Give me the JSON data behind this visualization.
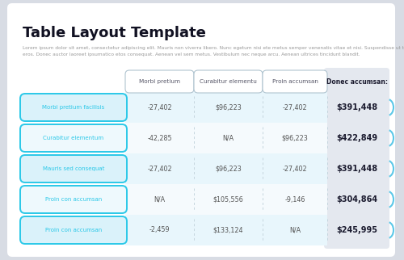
{
  "title": "Table Layout Template",
  "subtitle_line1": "Lorem ipsum dolor sit amet, consectetur adipiscing elit. Mauris non viverra libero. Nunc egetum nisi ete metus semper venenatis vitae et nisi. Suspendisse ut turpis",
  "subtitle_line2": "eros. Donec auctor laoreet ipsumatico etos consequat. Aenean vel sem metus. Vestibulum nec neque arcu. Aenean ultrices tincidunt blandit.",
  "col_headers": [
    "Morbi pretium",
    "Curabitur elementu",
    "Proin accumsan",
    "Donec accumsan:"
  ],
  "row_labels": [
    "Morbi pretium facilisis",
    "Curabitur elementum",
    "Mauris sed consequat",
    "Proin con accumsan",
    "Proin con accumsan"
  ],
  "data": [
    [
      "-27,402",
      "$96,223",
      "-27,402",
      "$391,448"
    ],
    [
      "-42,285",
      "N/A",
      "$96,223",
      "$422,849"
    ],
    [
      "-27,402",
      "$96,223",
      "-27,402",
      "$391,448"
    ],
    [
      "N/A",
      "$105,556",
      "-9,146",
      "$304,864"
    ],
    [
      "-2,459",
      "$133,124",
      "N/A",
      "$245,995"
    ]
  ],
  "bg_outer": "#d8dce4",
  "bg_white": "#ffffff",
  "bg_last_col": "#e4e8ef",
  "row_bg_odd": "#e8f6fc",
  "row_bg_even": "#f5fafd",
  "header_border_color": "#b0c4d0",
  "row_label_border": "#2ac8e8",
  "row_label_bg_odd": "#daf2fa",
  "row_label_bg_even": "#eef9fd",
  "row_label_text": "#2ac8e8",
  "last_col_text": "#1a1a2e",
  "data_text": "#555555",
  "title_color": "#111122",
  "subtitle_color": "#999999",
  "col_sep_color": "#c5d5de",
  "bracket_color": "#5bc8e8"
}
